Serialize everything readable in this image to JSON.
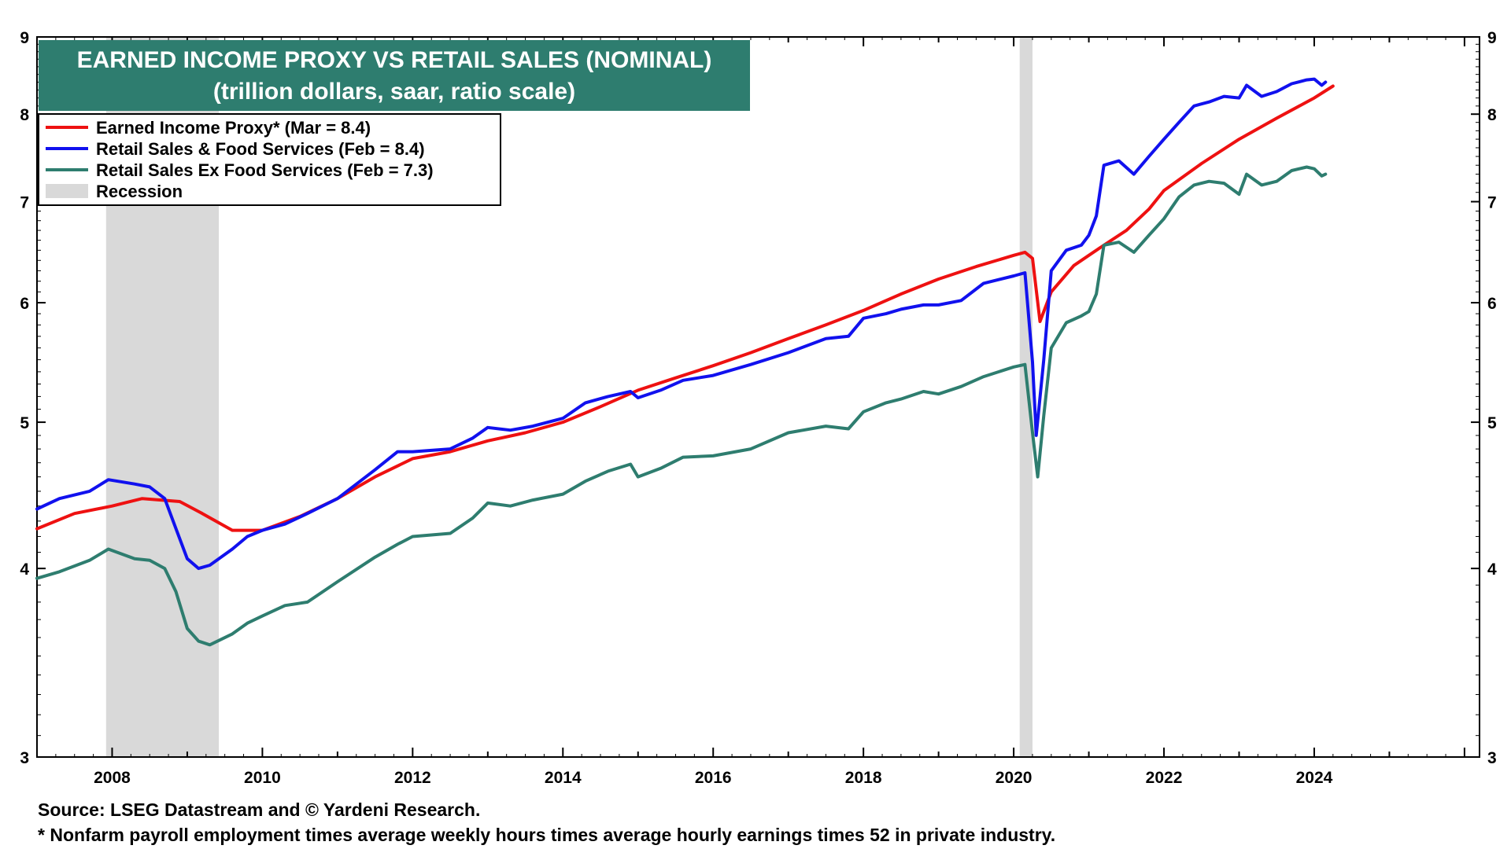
{
  "chart_data": {
    "type": "line",
    "title": "EARNED INCOME PROXY VS RETAIL SALES (NOMINAL)",
    "subtitle": "(trillion dollars, saar, ratio scale)",
    "yscale": "log",
    "ylim": [
      3,
      9
    ],
    "y_ticks": [
      3,
      4,
      5,
      6,
      7,
      8,
      9
    ],
    "xlim": [
      2007.0,
      2026.2
    ],
    "x_ticks": [
      "2008",
      "2010",
      "2012",
      "2014",
      "2016",
      "2018",
      "2020",
      "2022",
      "2024"
    ],
    "legend_position": "top-left",
    "recessions": [
      [
        2007.92,
        2009.42
      ],
      [
        2020.08,
        2020.25
      ]
    ],
    "recession_label": "Recession",
    "colors": {
      "earned": "#ee1111",
      "retail": "#1111ee",
      "exfood": "#2e7d6f",
      "recession": "#d9d9d9",
      "title_bg": "#2e7d6f"
    },
    "series": [
      {
        "name": "Earned Income Proxy* (Mar = 8.4)",
        "color": "#ee1111",
        "points": [
          [
            2007.0,
            4.25
          ],
          [
            2007.5,
            4.35
          ],
          [
            2008.0,
            4.4
          ],
          [
            2008.4,
            4.45
          ],
          [
            2008.9,
            4.43
          ],
          [
            2009.2,
            4.35
          ],
          [
            2009.6,
            4.24
          ],
          [
            2010.0,
            4.24
          ],
          [
            2010.5,
            4.33
          ],
          [
            2011.0,
            4.45
          ],
          [
            2011.5,
            4.6
          ],
          [
            2012.0,
            4.73
          ],
          [
            2012.5,
            4.78
          ],
          [
            2013.0,
            4.86
          ],
          [
            2013.5,
            4.92
          ],
          [
            2014.0,
            5.0
          ],
          [
            2014.5,
            5.12
          ],
          [
            2015.0,
            5.25
          ],
          [
            2015.5,
            5.35
          ],
          [
            2016.0,
            5.45
          ],
          [
            2016.5,
            5.56
          ],
          [
            2017.0,
            5.68
          ],
          [
            2017.5,
            5.8
          ],
          [
            2018.0,
            5.93
          ],
          [
            2018.5,
            6.08
          ],
          [
            2019.0,
            6.22
          ],
          [
            2019.5,
            6.34
          ],
          [
            2020.0,
            6.45
          ],
          [
            2020.15,
            6.48
          ],
          [
            2020.25,
            6.42
          ],
          [
            2020.35,
            5.83
          ],
          [
            2020.5,
            6.1
          ],
          [
            2020.8,
            6.35
          ],
          [
            2021.0,
            6.45
          ],
          [
            2021.2,
            6.55
          ],
          [
            2021.5,
            6.7
          ],
          [
            2021.8,
            6.92
          ],
          [
            2022.0,
            7.12
          ],
          [
            2022.5,
            7.42
          ],
          [
            2023.0,
            7.7
          ],
          [
            2023.5,
            7.95
          ],
          [
            2024.0,
            8.2
          ],
          [
            2024.25,
            8.35
          ]
        ]
      },
      {
        "name": "Retail Sales & Food Services (Feb = 8.4)",
        "color": "#1111ee",
        "points": [
          [
            2007.0,
            4.38
          ],
          [
            2007.3,
            4.45
          ],
          [
            2007.7,
            4.5
          ],
          [
            2007.95,
            4.58
          ],
          [
            2008.3,
            4.55
          ],
          [
            2008.5,
            4.53
          ],
          [
            2008.7,
            4.45
          ],
          [
            2008.85,
            4.25
          ],
          [
            2009.0,
            4.06
          ],
          [
            2009.15,
            4.0
          ],
          [
            2009.3,
            4.02
          ],
          [
            2009.6,
            4.12
          ],
          [
            2009.8,
            4.2
          ],
          [
            2010.0,
            4.24
          ],
          [
            2010.3,
            4.28
          ],
          [
            2010.6,
            4.35
          ],
          [
            2011.0,
            4.45
          ],
          [
            2011.5,
            4.65
          ],
          [
            2011.8,
            4.78
          ],
          [
            2012.0,
            4.78
          ],
          [
            2012.5,
            4.8
          ],
          [
            2012.8,
            4.88
          ],
          [
            2013.0,
            4.96
          ],
          [
            2013.3,
            4.94
          ],
          [
            2013.6,
            4.97
          ],
          [
            2014.0,
            5.03
          ],
          [
            2014.3,
            5.15
          ],
          [
            2014.6,
            5.2
          ],
          [
            2014.9,
            5.24
          ],
          [
            2015.0,
            5.19
          ],
          [
            2015.3,
            5.25
          ],
          [
            2015.6,
            5.33
          ],
          [
            2016.0,
            5.37
          ],
          [
            2016.5,
            5.46
          ],
          [
            2017.0,
            5.56
          ],
          [
            2017.5,
            5.68
          ],
          [
            2017.8,
            5.7
          ],
          [
            2018.0,
            5.86
          ],
          [
            2018.3,
            5.9
          ],
          [
            2018.5,
            5.94
          ],
          [
            2018.8,
            5.98
          ],
          [
            2019.0,
            5.98
          ],
          [
            2019.3,
            6.02
          ],
          [
            2019.6,
            6.18
          ],
          [
            2020.0,
            6.25
          ],
          [
            2020.15,
            6.28
          ],
          [
            2020.25,
            5.48
          ],
          [
            2020.3,
            4.9
          ],
          [
            2020.4,
            5.5
          ],
          [
            2020.5,
            6.3
          ],
          [
            2020.7,
            6.5
          ],
          [
            2020.9,
            6.55
          ],
          [
            2021.0,
            6.65
          ],
          [
            2021.1,
            6.85
          ],
          [
            2021.2,
            7.4
          ],
          [
            2021.4,
            7.45
          ],
          [
            2021.6,
            7.3
          ],
          [
            2021.8,
            7.5
          ],
          [
            2022.0,
            7.7
          ],
          [
            2022.2,
            7.9
          ],
          [
            2022.4,
            8.1
          ],
          [
            2022.6,
            8.15
          ],
          [
            2022.8,
            8.22
          ],
          [
            2023.0,
            8.2
          ],
          [
            2023.1,
            8.36
          ],
          [
            2023.3,
            8.22
          ],
          [
            2023.5,
            8.28
          ],
          [
            2023.7,
            8.38
          ],
          [
            2023.9,
            8.43
          ],
          [
            2024.0,
            8.44
          ],
          [
            2024.1,
            8.36
          ],
          [
            2024.15,
            8.4
          ]
        ]
      },
      {
        "name": "Retail Sales Ex Food Services (Feb = 7.3)",
        "color": "#2e7d6f",
        "points": [
          [
            2007.0,
            3.94
          ],
          [
            2007.3,
            3.98
          ],
          [
            2007.7,
            4.05
          ],
          [
            2007.95,
            4.12
          ],
          [
            2008.3,
            4.06
          ],
          [
            2008.5,
            4.05
          ],
          [
            2008.7,
            4.0
          ],
          [
            2008.85,
            3.86
          ],
          [
            2009.0,
            3.65
          ],
          [
            2009.15,
            3.58
          ],
          [
            2009.3,
            3.56
          ],
          [
            2009.6,
            3.62
          ],
          [
            2009.8,
            3.68
          ],
          [
            2010.0,
            3.72
          ],
          [
            2010.3,
            3.78
          ],
          [
            2010.6,
            3.8
          ],
          [
            2011.0,
            3.92
          ],
          [
            2011.5,
            4.07
          ],
          [
            2011.8,
            4.15
          ],
          [
            2012.0,
            4.2
          ],
          [
            2012.5,
            4.22
          ],
          [
            2012.8,
            4.32
          ],
          [
            2013.0,
            4.42
          ],
          [
            2013.3,
            4.4
          ],
          [
            2013.6,
            4.44
          ],
          [
            2014.0,
            4.48
          ],
          [
            2014.3,
            4.57
          ],
          [
            2014.6,
            4.64
          ],
          [
            2014.9,
            4.69
          ],
          [
            2015.0,
            4.6
          ],
          [
            2015.3,
            4.66
          ],
          [
            2015.6,
            4.74
          ],
          [
            2016.0,
            4.75
          ],
          [
            2016.5,
            4.8
          ],
          [
            2017.0,
            4.92
          ],
          [
            2017.5,
            4.97
          ],
          [
            2017.8,
            4.95
          ],
          [
            2018.0,
            5.08
          ],
          [
            2018.3,
            5.15
          ],
          [
            2018.5,
            5.18
          ],
          [
            2018.8,
            5.24
          ],
          [
            2019.0,
            5.22
          ],
          [
            2019.3,
            5.28
          ],
          [
            2019.6,
            5.36
          ],
          [
            2020.0,
            5.44
          ],
          [
            2020.15,
            5.46
          ],
          [
            2020.25,
            4.92
          ],
          [
            2020.32,
            4.6
          ],
          [
            2020.4,
            5.05
          ],
          [
            2020.5,
            5.6
          ],
          [
            2020.7,
            5.82
          ],
          [
            2020.9,
            5.88
          ],
          [
            2021.0,
            5.92
          ],
          [
            2021.1,
            6.08
          ],
          [
            2021.2,
            6.55
          ],
          [
            2021.4,
            6.58
          ],
          [
            2021.6,
            6.48
          ],
          [
            2021.8,
            6.65
          ],
          [
            2022.0,
            6.82
          ],
          [
            2022.2,
            7.05
          ],
          [
            2022.4,
            7.18
          ],
          [
            2022.6,
            7.22
          ],
          [
            2022.8,
            7.2
          ],
          [
            2023.0,
            7.08
          ],
          [
            2023.1,
            7.3
          ],
          [
            2023.3,
            7.18
          ],
          [
            2023.5,
            7.22
          ],
          [
            2023.7,
            7.34
          ],
          [
            2023.9,
            7.38
          ],
          [
            2024.0,
            7.36
          ],
          [
            2024.1,
            7.28
          ],
          [
            2024.15,
            7.3
          ]
        ]
      }
    ],
    "source": "Source: LSEG Datastream and © Yardeni Research.",
    "footnote": "* Nonfarm payroll employment times average weekly hours times average hourly earnings times 52 in private industry."
  }
}
